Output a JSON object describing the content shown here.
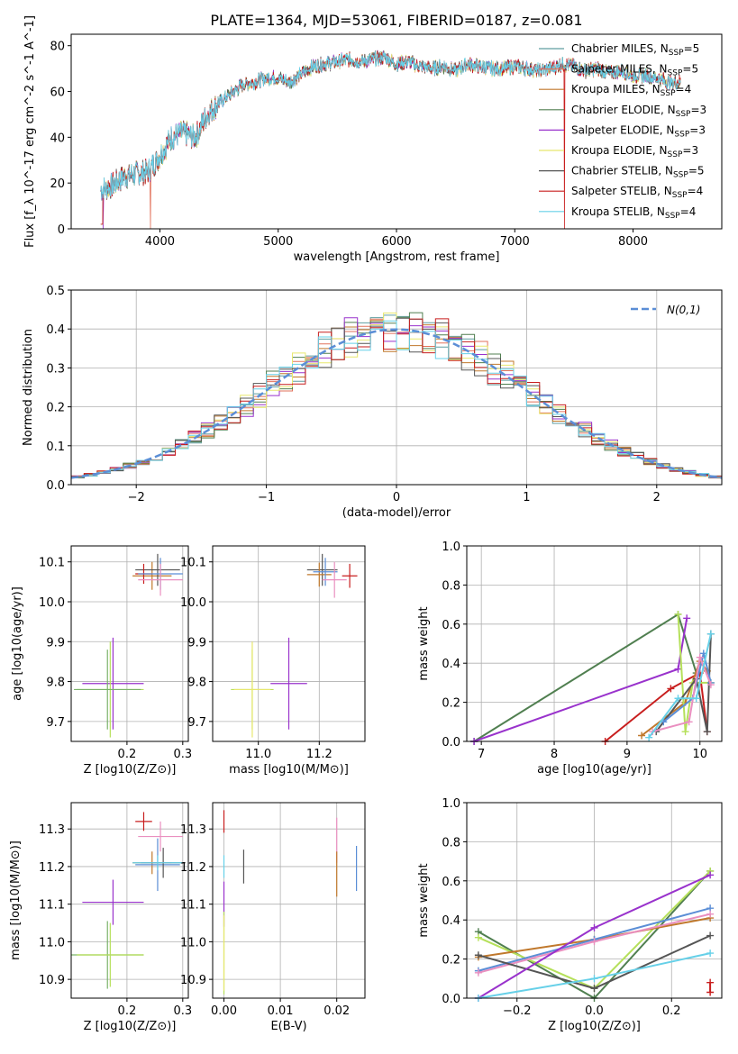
{
  "figure_title": "PLATE=1364, MJD=53061, FIBERID=0187, z=0.081",
  "chart_data": [
    {
      "type": "line",
      "panel": "spectrum",
      "xlabel": "wavelength [Angstrom, rest frame]",
      "ylabel": "Flux [f_λ 10^-17 erg cm^-2 s^-1 A^-1]",
      "xlim": [
        3250,
        8750
      ],
      "ylim": [
        0,
        85
      ],
      "xticks": [
        4000,
        5000,
        6000,
        7000,
        8000
      ],
      "yticks": [
        0,
        20,
        40,
        60,
        80
      ],
      "legend_position": "top-right",
      "envelope": {
        "x": [
          3500,
          3600,
          3700,
          3800,
          3900,
          4000,
          4100,
          4200,
          4300,
          4400,
          4500,
          4600,
          4700,
          4800,
          4900,
          5000,
          5100,
          5200,
          5300,
          5400,
          5500,
          5600,
          5700,
          5800,
          5900,
          6000,
          6100,
          6200,
          6300,
          6400,
          6500,
          6600,
          6700,
          6800,
          6900,
          7000,
          7100,
          7200,
          7300,
          7400,
          7500,
          7600,
          7700,
          7800,
          7900,
          8000,
          8100,
          8200,
          8300,
          8400
        ],
        "y": [
          17,
          19,
          23,
          24,
          25,
          32,
          40,
          42,
          40,
          50,
          55,
          59,
          63,
          64,
          66,
          66,
          64,
          68,
          71,
          72,
          73,
          74,
          73,
          74,
          75,
          72,
          73,
          71,
          70,
          71,
          69,
          72,
          71,
          70,
          70,
          71,
          70,
          69,
          70,
          72,
          71,
          69,
          70,
          68,
          69,
          67,
          67,
          66,
          64,
          64
        ]
      },
      "series": [
        {
          "name": "Chabrier MILES, N_SSP=5",
          "color": "#5f9ea0"
        },
        {
          "name": "Salpeter MILES, N_SSP=5",
          "color": "#e2725b"
        },
        {
          "name": "Kroupa MILES, N_SSP=4",
          "color": "#c0782c"
        },
        {
          "name": "Chabrier ELODIE, N_SSP=3",
          "color": "#507f50"
        },
        {
          "name": "Salpeter ELODIE, N_SSP=3",
          "color": "#9932cc"
        },
        {
          "name": "Kroupa ELODIE, N_SSP=3",
          "color": "#e8e86e"
        },
        {
          "name": "Chabrier STELIB, N_SSP=5",
          "color": "#555555"
        },
        {
          "name": "Salpeter STELIB, N_SSP=4",
          "color": "#c81e1e"
        },
        {
          "name": "Kroupa STELIB, N_SSP=4",
          "color": "#66d0e8"
        }
      ],
      "dropouts": [
        3520,
        3920,
        6790,
        7420
      ]
    },
    {
      "type": "bar",
      "panel": "residual_histogram",
      "xlabel": "(data-model)/error",
      "ylabel": "Normed distribution",
      "xlim": [
        -2.5,
        2.5
      ],
      "ylim": [
        0,
        0.5
      ],
      "xticks": [
        -2,
        -1,
        0,
        1,
        2
      ],
      "yticks": [
        0.0,
        0.1,
        0.2,
        0.3,
        0.4,
        0.5
      ],
      "bin_width": 0.1,
      "curve_label": "N(0,1)",
      "curve_color": "#5b8ed6",
      "legend_position": "top-right",
      "series_colors": [
        "#5f9ea0",
        "#e2725b",
        "#c0782c",
        "#507f50",
        "#9932cc",
        "#e8e86e",
        "#555555",
        "#c81e1e",
        "#66d0e8"
      ]
    },
    {
      "type": "scatter",
      "panel": "age_vs_Z",
      "xlabel": "Z [log10(Z/Z⊙)]",
      "ylabel": "age  [log10(age/yr)]",
      "xlim": [
        0.1,
        0.31
      ],
      "ylim": [
        9.65,
        10.14
      ],
      "xticks": [
        0.2,
        0.3
      ],
      "yticks": [
        9.7,
        9.8,
        9.9,
        10.0,
        10.1
      ],
      "points": [
        {
          "x": 0.245,
          "y": 10.065,
          "xerr": 0.035,
          "yerr": 0.035,
          "color": "#c0782c"
        },
        {
          "x": 0.255,
          "y": 10.08,
          "xerr": 0.04,
          "yerr": 0.04,
          "color": "#555555"
        },
        {
          "x": 0.23,
          "y": 10.07,
          "xerr": 0.015,
          "yerr": 0.025,
          "color": "#c81e1e"
        },
        {
          "x": 0.26,
          "y": 10.07,
          "xerr": 0.04,
          "yerr": 0.04,
          "color": "#5b8ed6"
        },
        {
          "x": 0.26,
          "y": 10.055,
          "xerr": 0.04,
          "yerr": 0.04,
          "color": "#ea8fc0"
        },
        {
          "x": 0.175,
          "y": 9.795,
          "xerr": 0.055,
          "yerr": 0.115,
          "color": "#9932cc"
        },
        {
          "x": 0.17,
          "y": 9.78,
          "xerr": 0.06,
          "yerr": 0.12,
          "color": "#b5e05a"
        },
        {
          "x": 0.165,
          "y": 9.78,
          "xerr": 0.06,
          "yerr": 0.1,
          "color": "#7ab36a"
        }
      ]
    },
    {
      "type": "scatter",
      "panel": "age_vs_mass",
      "xlabel": "mass [log10(M/M⊙)]",
      "ylabel": "",
      "xlim": [
        10.85,
        11.35
      ],
      "ylim": [
        9.65,
        10.14
      ],
      "xticks": [
        11.0,
        11.2
      ],
      "yticks": [
        9.7,
        9.8,
        9.9,
        10.0,
        10.1
      ],
      "points": [
        {
          "x": 11.21,
          "y": 10.08,
          "xerr": 0.05,
          "yerr": 0.04,
          "color": "#555555"
        },
        {
          "x": 11.3,
          "y": 10.065,
          "xerr": 0.025,
          "yerr": 0.03,
          "color": "#c81e1e"
        },
        {
          "x": 11.2,
          "y": 10.068,
          "xerr": 0.04,
          "yerr": 0.03,
          "color": "#c0782c"
        },
        {
          "x": 11.22,
          "y": 10.075,
          "xerr": 0.04,
          "yerr": 0.035,
          "color": "#5b8ed6"
        },
        {
          "x": 11.25,
          "y": 10.055,
          "xerr": 0.04,
          "yerr": 0.045,
          "color": "#ea8fc0"
        },
        {
          "x": 11.1,
          "y": 9.795,
          "xerr": 0.06,
          "yerr": 0.115,
          "color": "#9932cc"
        },
        {
          "x": 10.98,
          "y": 9.78,
          "xerr": 0.07,
          "yerr": 0.1,
          "color": "#b5e05a"
        },
        {
          "x": 10.98,
          "y": 9.78,
          "xerr": 0.06,
          "yerr": 0.12,
          "color": "#e8e86e"
        }
      ]
    },
    {
      "type": "line",
      "panel": "massweight_vs_age",
      "xlabel": "age  [log10(age/yr)]",
      "ylabel": "mass weight",
      "xlim": [
        6.8,
        10.3
      ],
      "ylim": [
        0,
        1
      ],
      "xticks": [
        7,
        8,
        9,
        10
      ],
      "yticks": [
        0.0,
        0.2,
        0.4,
        0.6,
        0.8,
        1.0
      ],
      "series": [
        {
          "color": "#507f50",
          "x": [
            6.9,
            9.7,
            9.95
          ],
          "y": [
            0.0,
            0.65,
            0.35
          ]
        },
        {
          "color": "#9932cc",
          "x": [
            6.9,
            9.7,
            9.82
          ],
          "y": [
            0.0,
            0.37,
            0.63
          ]
        },
        {
          "color": "#c81e1e",
          "x": [
            8.7,
            9.6,
            10.0,
            10.1
          ],
          "y": [
            0.0,
            0.27,
            0.35,
            0.05
          ]
        },
        {
          "color": "#c0782c",
          "x": [
            9.2,
            9.8,
            10.0,
            10.1
          ],
          "y": [
            0.03,
            0.2,
            0.41,
            0.36
          ]
        },
        {
          "color": "#b5e05a",
          "x": [
            9.7,
            9.8,
            9.9,
            10.15
          ],
          "y": [
            0.65,
            0.05,
            0.3,
            0.3
          ]
        },
        {
          "color": "#555555",
          "x": [
            9.4,
            9.95,
            10.1,
            10.15
          ],
          "y": [
            0.05,
            0.32,
            0.05,
            0.55
          ]
        },
        {
          "color": "#5b8ed6",
          "x": [
            9.5,
            9.9,
            10.05,
            10.15
          ],
          "y": [
            0.1,
            0.22,
            0.45,
            0.3
          ]
        },
        {
          "color": "#ea8fc0",
          "x": [
            9.35,
            9.85,
            10.0,
            10.15
          ],
          "y": [
            0.05,
            0.1,
            0.43,
            0.29
          ]
        },
        {
          "color": "#66d0e8",
          "x": [
            9.3,
            9.7,
            9.95,
            10.15
          ],
          "y": [
            0.02,
            0.22,
            0.22,
            0.55
          ]
        }
      ]
    },
    {
      "type": "scatter",
      "panel": "mass_vs_Z",
      "xlabel": "Z [log10(Z/Z⊙)]",
      "ylabel": "mass [log10(M/M⊙)]",
      "xlim": [
        0.1,
        0.31
      ],
      "ylim": [
        10.85,
        11.37
      ],
      "xticks": [
        0.2,
        0.3
      ],
      "yticks": [
        10.9,
        11.0,
        11.1,
        11.2,
        11.3
      ],
      "points": [
        {
          "x": 0.23,
          "y": 11.32,
          "xerr": 0.015,
          "yerr": 0.025,
          "color": "#c81e1e"
        },
        {
          "x": 0.26,
          "y": 11.28,
          "xerr": 0.04,
          "yerr": 0.04,
          "color": "#ea8fc0"
        },
        {
          "x": 0.245,
          "y": 11.21,
          "xerr": 0.035,
          "yerr": 0.03,
          "color": "#c0782c"
        },
        {
          "x": 0.255,
          "y": 11.205,
          "xerr": 0.04,
          "yerr": 0.07,
          "color": "#5b8ed6"
        },
        {
          "x": 0.265,
          "y": 11.21,
          "xerr": 0.04,
          "yerr": 0.04,
          "color": "#555555"
        },
        {
          "x": 0.255,
          "y": 11.21,
          "xerr": 0.045,
          "yerr": 0.02,
          "color": "#66d0e8"
        },
        {
          "x": 0.175,
          "y": 11.105,
          "xerr": 0.055,
          "yerr": 0.06,
          "color": "#9932cc"
        },
        {
          "x": 0.165,
          "y": 10.965,
          "xerr": 0.065,
          "yerr": 0.09,
          "color": "#7ab36a"
        },
        {
          "x": 0.17,
          "y": 10.965,
          "xerr": 0.06,
          "yerr": 0.085,
          "color": "#b5e05a"
        }
      ]
    },
    {
      "type": "scatter",
      "panel": "mass_vs_EBV",
      "xlabel": "E(B-V)",
      "ylabel": "",
      "xlim": [
        -0.002,
        0.025
      ],
      "ylim": [
        10.85,
        11.37
      ],
      "xticks": [
        0.0,
        0.01,
        0.02
      ],
      "yticks": [
        10.9,
        11.0,
        11.1,
        11.2,
        11.3
      ],
      "points": [
        {
          "x": 0.0,
          "y": 11.32,
          "xerr": 0,
          "yerr": 0.03,
          "color": "#c81e1e"
        },
        {
          "x": 0.02,
          "y": 11.27,
          "xerr": 0,
          "yerr": 0.06,
          "color": "#ea8fc0"
        },
        {
          "x": 0.02,
          "y": 11.18,
          "xerr": 0,
          "yerr": 0.06,
          "color": "#c0782c"
        },
        {
          "x": 0.0035,
          "y": 11.2,
          "xerr": 0,
          "yerr": 0.045,
          "color": "#555555"
        },
        {
          "x": 0.0235,
          "y": 11.195,
          "xerr": 0,
          "yerr": 0.06,
          "color": "#5b8ed6"
        },
        {
          "x": 0.0,
          "y": 11.2,
          "xerr": 0,
          "yerr": 0.03,
          "color": "#66d0e8"
        },
        {
          "x": 0.0,
          "y": 11.1,
          "xerr": 0,
          "yerr": 0.06,
          "color": "#9932cc"
        },
        {
          "x": 0.0,
          "y": 10.97,
          "xerr": 0,
          "yerr": 0.11,
          "color": "#b5e05a"
        },
        {
          "x": 0.0,
          "y": 10.97,
          "xerr": 0,
          "yerr": 0.1,
          "color": "#e8e86e"
        }
      ]
    },
    {
      "type": "line",
      "panel": "massweight_vs_Z",
      "xlabel": "Z [log10(Z/Z⊙)]",
      "ylabel": "mass weight",
      "xlim": [
        -0.33,
        0.33
      ],
      "ylim": [
        0,
        1
      ],
      "xticks": [
        -0.2,
        0.0,
        0.2
      ],
      "yticks": [
        0.0,
        0.2,
        0.4,
        0.6,
        0.8,
        1.0
      ],
      "series": [
        {
          "color": "#507f50",
          "x": [
            -0.3,
            0.0,
            0.3
          ],
          "y": [
            0.34,
            0.0,
            0.65
          ]
        },
        {
          "color": "#b5e05a",
          "x": [
            -0.3,
            0.0,
            0.3
          ],
          "y": [
            0.31,
            0.05,
            0.65
          ]
        },
        {
          "color": "#c0782c",
          "x": [
            -0.3,
            0.0,
            0.3
          ],
          "y": [
            0.21,
            0.3,
            0.41
          ]
        },
        {
          "color": "#5b8ed6",
          "x": [
            -0.3,
            0.0,
            0.3
          ],
          "y": [
            0.14,
            0.3,
            0.46
          ]
        },
        {
          "color": "#ea8fc0",
          "x": [
            -0.3,
            0.0,
            0.3
          ],
          "y": [
            0.13,
            0.29,
            0.43
          ]
        },
        {
          "color": "#555555",
          "x": [
            -0.3,
            0.0,
            0.3
          ],
          "y": [
            0.22,
            0.05,
            0.32
          ]
        },
        {
          "color": "#9932cc",
          "x": [
            -0.3,
            0.0,
            0.3
          ],
          "y": [
            0.0,
            0.36,
            0.63
          ]
        },
        {
          "color": "#66d0e8",
          "x": [
            -0.3,
            0.0,
            0.3
          ],
          "y": [
            0.0,
            0.1,
            0.23
          ]
        },
        {
          "color": "#c81e1e",
          "x": [
            0.3,
            0.3
          ],
          "y": [
            0.03,
            0.08
          ]
        }
      ]
    }
  ]
}
